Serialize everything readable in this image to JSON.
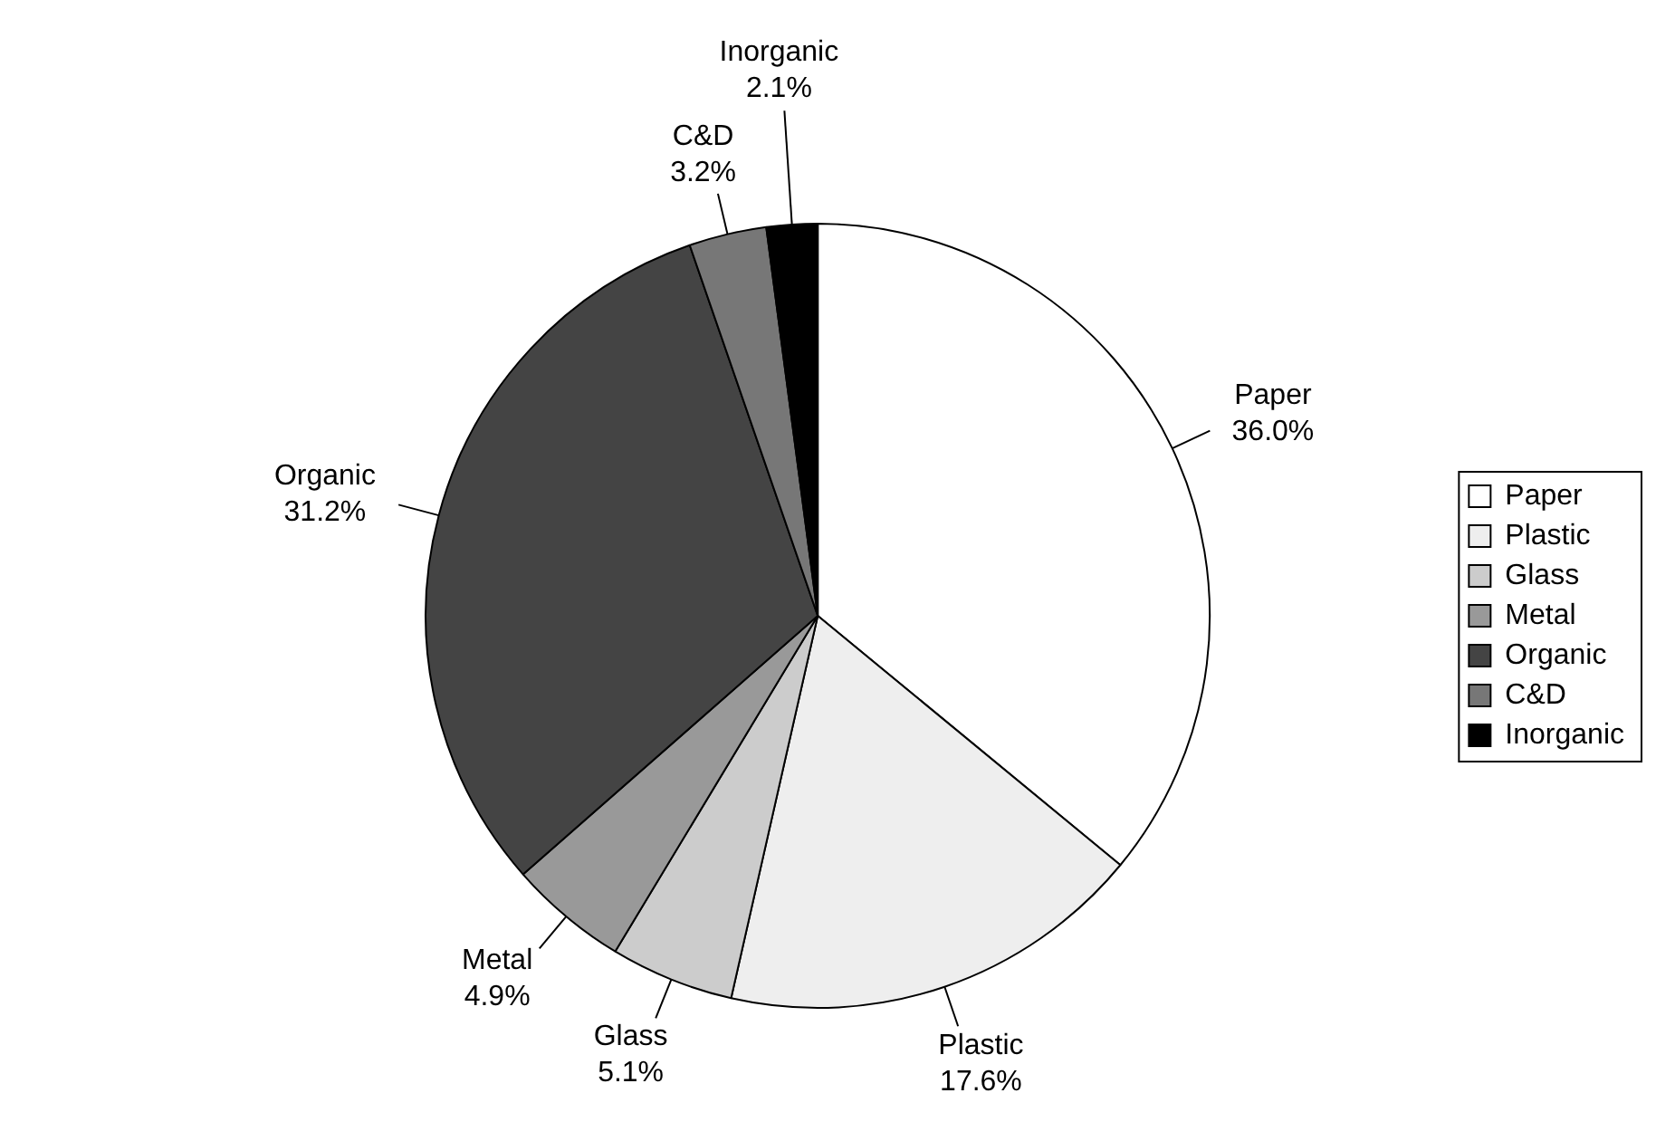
{
  "chart_data": {
    "type": "pie",
    "categories": [
      "Paper",
      "Plastic",
      "Glass",
      "Metal",
      "Organic",
      "C&D",
      "Inorganic"
    ],
    "values": [
      36.0,
      17.6,
      5.1,
      4.9,
      31.2,
      3.2,
      2.1
    ],
    "value_labels": [
      "36.0%",
      "17.6%",
      "5.1%",
      "4.9%",
      "31.2%",
      "3.2%",
      "2.1%"
    ],
    "colors": [
      "#ffffff",
      "#eeeeee",
      "#cccccc",
      "#999999",
      "#444444",
      "#777777",
      "#000000"
    ],
    "legend": "right"
  }
}
